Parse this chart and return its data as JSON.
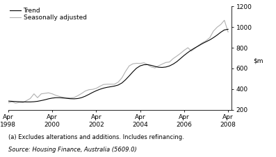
{
  "legend_entries": [
    "Trend",
    "Seasonally adjusted"
  ],
  "legend_colors": [
    "#000000",
    "#b0b0b0"
  ],
  "ylim": [
    200,
    1200
  ],
  "yticks": [
    200,
    400,
    600,
    800,
    1000,
    1200
  ],
  "xlim": [
    1998.25,
    2008.42
  ],
  "xtick_positions": [
    1998.25,
    2000.25,
    2002.25,
    2004.25,
    2006.25,
    2008.25
  ],
  "xtick_labels": [
    "Apr\n1998",
    "Apr\n2000",
    "Apr\n2002",
    "Apr\n2004",
    "Apr\n2006",
    "Apr\n2008"
  ],
  "footnote1": "(a) Excludes alterations and additions. Includes refinancing.",
  "footnote2": "Source: Housing Finance, Australia (5609.0)",
  "trend_data": [
    [
      1998.25,
      285
    ],
    [
      1998.42,
      283
    ],
    [
      1998.58,
      281
    ],
    [
      1998.75,
      279
    ],
    [
      1998.92,
      278
    ],
    [
      1999.08,
      277
    ],
    [
      1999.25,
      277
    ],
    [
      1999.42,
      279
    ],
    [
      1999.58,
      283
    ],
    [
      1999.75,
      290
    ],
    [
      1999.92,
      298
    ],
    [
      2000.08,
      307
    ],
    [
      2000.25,
      314
    ],
    [
      2000.42,
      318
    ],
    [
      2000.58,
      318
    ],
    [
      2000.75,
      315
    ],
    [
      2000.92,
      311
    ],
    [
      2001.08,
      308
    ],
    [
      2001.25,
      307
    ],
    [
      2001.42,
      310
    ],
    [
      2001.58,
      318
    ],
    [
      2001.75,
      332
    ],
    [
      2001.92,
      350
    ],
    [
      2002.08,
      368
    ],
    [
      2002.25,
      385
    ],
    [
      2002.42,
      399
    ],
    [
      2002.58,
      410
    ],
    [
      2002.75,
      418
    ],
    [
      2002.92,
      424
    ],
    [
      2003.08,
      430
    ],
    [
      2003.25,
      440
    ],
    [
      2003.42,
      460
    ],
    [
      2003.58,
      490
    ],
    [
      2003.75,
      528
    ],
    [
      2003.92,
      568
    ],
    [
      2004.08,
      602
    ],
    [
      2004.25,
      625
    ],
    [
      2004.42,
      636
    ],
    [
      2004.58,
      637
    ],
    [
      2004.75,
      630
    ],
    [
      2004.92,
      620
    ],
    [
      2005.08,
      612
    ],
    [
      2005.25,
      610
    ],
    [
      2005.42,
      614
    ],
    [
      2005.58,
      624
    ],
    [
      2005.75,
      642
    ],
    [
      2005.92,
      666
    ],
    [
      2006.08,
      695
    ],
    [
      2006.25,
      726
    ],
    [
      2006.42,
      754
    ],
    [
      2006.58,
      778
    ],
    [
      2006.75,
      800
    ],
    [
      2006.92,
      820
    ],
    [
      2007.08,
      840
    ],
    [
      2007.25,
      858
    ],
    [
      2007.42,
      876
    ],
    [
      2007.58,
      897
    ],
    [
      2007.75,
      922
    ],
    [
      2007.92,
      950
    ],
    [
      2008.08,
      972
    ],
    [
      2008.25,
      978
    ]
  ],
  "seasonal_data": [
    [
      1998.25,
      268
    ],
    [
      1998.42,
      278
    ],
    [
      1998.58,
      265
    ],
    [
      1998.75,
      272
    ],
    [
      1998.92,
      270
    ],
    [
      1999.08,
      290
    ],
    [
      1999.25,
      310
    ],
    [
      1999.42,
      355
    ],
    [
      1999.58,
      318
    ],
    [
      1999.75,
      355
    ],
    [
      1999.92,
      360
    ],
    [
      2000.08,
      365
    ],
    [
      2000.25,
      355
    ],
    [
      2000.42,
      340
    ],
    [
      2000.58,
      330
    ],
    [
      2000.75,
      322
    ],
    [
      2000.92,
      318
    ],
    [
      2001.08,
      315
    ],
    [
      2001.25,
      320
    ],
    [
      2001.42,
      338
    ],
    [
      2001.58,
      358
    ],
    [
      2001.75,
      382
    ],
    [
      2001.92,
      395
    ],
    [
      2002.08,
      398
    ],
    [
      2002.25,
      408
    ],
    [
      2002.42,
      428
    ],
    [
      2002.58,
      445
    ],
    [
      2002.75,
      448
    ],
    [
      2002.92,
      448
    ],
    [
      2003.08,
      448
    ],
    [
      2003.25,
      468
    ],
    [
      2003.42,
      510
    ],
    [
      2003.58,
      570
    ],
    [
      2003.75,
      625
    ],
    [
      2003.92,
      645
    ],
    [
      2004.08,
      650
    ],
    [
      2004.25,
      648
    ],
    [
      2004.42,
      655
    ],
    [
      2004.58,
      638
    ],
    [
      2004.75,
      615
    ],
    [
      2004.92,
      605
    ],
    [
      2005.08,
      625
    ],
    [
      2005.25,
      642
    ],
    [
      2005.42,
      658
    ],
    [
      2005.58,
      662
    ],
    [
      2005.75,
      695
    ],
    [
      2005.92,
      720
    ],
    [
      2006.08,
      745
    ],
    [
      2006.25,
      775
    ],
    [
      2006.42,
      800
    ],
    [
      2006.58,
      768
    ],
    [
      2006.75,
      795
    ],
    [
      2006.92,
      825
    ],
    [
      2007.08,
      848
    ],
    [
      2007.25,
      868
    ],
    [
      2007.42,
      898
    ],
    [
      2007.58,
      960
    ],
    [
      2007.75,
      998
    ],
    [
      2007.92,
      1025
    ],
    [
      2008.08,
      1065
    ],
    [
      2008.25,
      952
    ]
  ],
  "trend_color": "#000000",
  "seasonal_color": "#b0b0b0",
  "background_color": "#ffffff",
  "font_size_legend": 6.5,
  "font_size_ticks": 6.5,
  "font_size_footnote": 6.0,
  "font_size_ylabel": 6.5,
  "trend_linewidth": 0.8,
  "seasonal_linewidth": 0.8
}
